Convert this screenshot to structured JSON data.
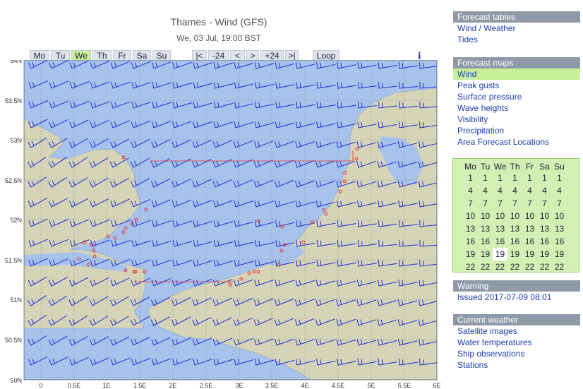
{
  "header": {
    "title": "Thames - Wind (GFS)",
    "subtitle": "We, 03 Jul, 19:00 BST"
  },
  "day_tabs": [
    "Mo",
    "Tu",
    "We",
    "Th",
    "Fr",
    "Sa",
    "Su"
  ],
  "selected_day": "We",
  "step_buttons": [
    "|<",
    "-24",
    "<",
    ">",
    "+24",
    ">|"
  ],
  "loop_label": "Loop",
  "info_icon": "i",
  "map": {
    "lat_labels": [
      "54N",
      "53.5N",
      "53N",
      "52.5N",
      "52N",
      "51.5N",
      "51N",
      "50.5N",
      "50N"
    ],
    "lon_labels": [
      "0",
      "0.5E",
      "1E",
      "1.5E",
      "2E",
      "2.5E",
      "3E",
      "3.5E",
      "4E",
      "4.5E",
      "5E",
      "5.5E",
      "6E"
    ],
    "colors": {
      "sea": "#a7c3ec",
      "land": "#d6d4b6",
      "barb": "#1a2fd8",
      "marker": "#e83030",
      "grid": "#8888aa"
    }
  },
  "forecast_tables": {
    "heading": "Forecast tables",
    "links": [
      "Wind / Weather",
      "Tides"
    ]
  },
  "forecast_maps": {
    "heading": "Forecast maps",
    "links": [
      "Wind",
      "Peak gusts",
      "Surface pressure",
      "Wave heights",
      "Visibility",
      "Precipitation",
      "Area Forecast Locations"
    ],
    "selected": "Wind"
  },
  "calendar": {
    "headers": [
      "Mo",
      "Tu",
      "We",
      "Th",
      "Fr",
      "Sa",
      "Su"
    ],
    "rows": [
      [
        1,
        1,
        1,
        1,
        1,
        1,
        1
      ],
      [
        4,
        4,
        4,
        4,
        4,
        4,
        4
      ],
      [
        7,
        7,
        7,
        7,
        7,
        7,
        7
      ],
      [
        10,
        10,
        10,
        10,
        10,
        10,
        10
      ],
      [
        13,
        13,
        13,
        13,
        13,
        13,
        13
      ],
      [
        16,
        16,
        16,
        16,
        16,
        16,
        16
      ],
      [
        19,
        19,
        19,
        19,
        19,
        19,
        19
      ],
      [
        22,
        22,
        22,
        22,
        22,
        22,
        22
      ]
    ],
    "selected": {
      "row": 6,
      "col": 2
    }
  },
  "warning": {
    "heading": "Warning",
    "text": "Issued 2017-07-09 08:01"
  },
  "current_weather": {
    "heading": "Current weather",
    "links": [
      "Satellite images",
      "Water temperatures",
      "Ship observations",
      "Stations"
    ]
  }
}
